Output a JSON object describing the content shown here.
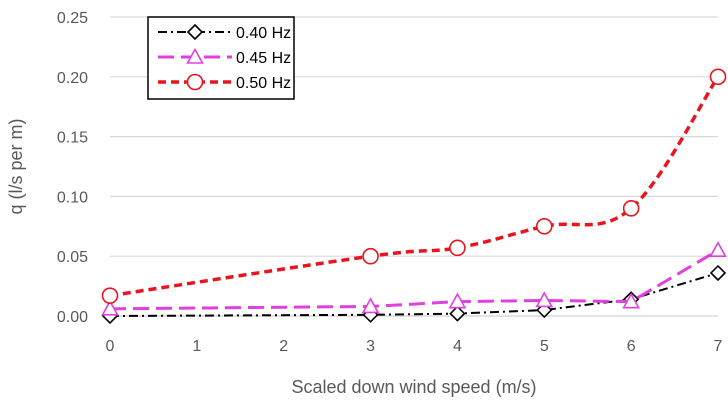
{
  "chart_data": {
    "type": "line",
    "title": "",
    "xlabel": "Scaled down wind speed (m/s)",
    "ylabel": "q (l/s per m)",
    "xlim": [
      0,
      7
    ],
    "ylim": [
      0,
      0.25
    ],
    "x_ticks": [
      "0",
      "1",
      "2",
      "3",
      "4",
      "5",
      "6",
      "7"
    ],
    "y_ticks": [
      "0.00",
      "0.05",
      "0.10",
      "0.15",
      "0.20",
      "0.25"
    ],
    "grid": "horizontal",
    "legend_position": "top-left",
    "series": [
      {
        "name": "0.40 Hz",
        "color": "#000000",
        "marker": "diamond",
        "line_style": "dash-dot",
        "smooth": false,
        "x": [
          0,
          3,
          4,
          5,
          6,
          7
        ],
        "y": [
          0.0,
          0.001,
          0.002,
          0.005,
          0.014,
          0.036
        ]
      },
      {
        "name": "0.45 Hz",
        "color": "#e040e0",
        "marker": "triangle",
        "line_style": "long-dash",
        "smooth": false,
        "x": [
          0,
          3,
          4,
          5,
          6,
          7
        ],
        "y": [
          0.006,
          0.008,
          0.012,
          0.013,
          0.012,
          0.055
        ]
      },
      {
        "name": "0.50 Hz",
        "color": "#e8141e",
        "marker": "circle",
        "line_style": "dash",
        "smooth": true,
        "x": [
          0,
          3,
          4,
          5,
          6,
          7
        ],
        "y": [
          0.017,
          0.05,
          0.057,
          0.075,
          0.09,
          0.2
        ]
      }
    ]
  }
}
